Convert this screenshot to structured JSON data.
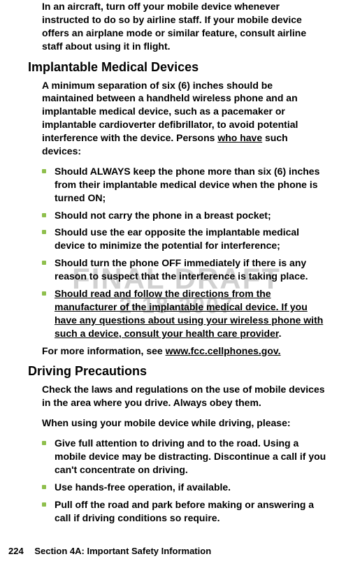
{
  "watermark": {
    "line1": "FINAL DRAFT",
    "line2": "2-18-2007"
  },
  "intro_paragraph": "In an aircraft, turn off your mobile device whenever instructed to do so by airline staff. If your mobile device offers an airplane mode or similar feature, consult airline staff about using it in flight.",
  "section1": {
    "heading": "Implantable Medical Devices",
    "para_pre": "A minimum separation of six (6) inches should be maintained between a handheld wireless phone and an implantable medical device, such as a pacemaker or implantable cardioverter defibrillator, to avoid potential interference with the device. Persons ",
    "para_u": "who have",
    "para_post": " such devices:",
    "bullets": [
      "Should ALWAYS keep the phone more than six (6) inches from their implantable medical device when the phone is turned ON;",
      "Should not carry the phone in a breast pocket;",
      "Should use the ear opposite the implantable medical device to minimize the potential for interference;",
      "Should turn the phone OFF immediately if there is any reason to suspect that the interference is taking place."
    ],
    "bullet5_u": "Should read and follow the directions from the manufacturer of the implantable medical device.  If you have any questions about using your wireless phone with such a device, consult your health care provider",
    "bullet5_post": ".",
    "more_info_pre": "For more information, see ",
    "more_info_u": "www.fcc.cellphones.gov."
  },
  "section2": {
    "heading": "Driving Precautions",
    "para1": "Check the laws and regulations on the use of mobile devices in the area where you drive. Always obey them.",
    "para2": "When using your mobile device while driving, please:",
    "bullets": [
      "Give full attention to driving and to the road. Using a mobile device may be distracting. Discontinue a call if you can't concentrate on driving.",
      "Use hands-free operation, if available.",
      "Pull off the road and park before making or answering a call if driving conditions so require."
    ]
  },
  "footer": {
    "page_number": "224",
    "section_label": "Section 4A: Important Safety Information"
  }
}
